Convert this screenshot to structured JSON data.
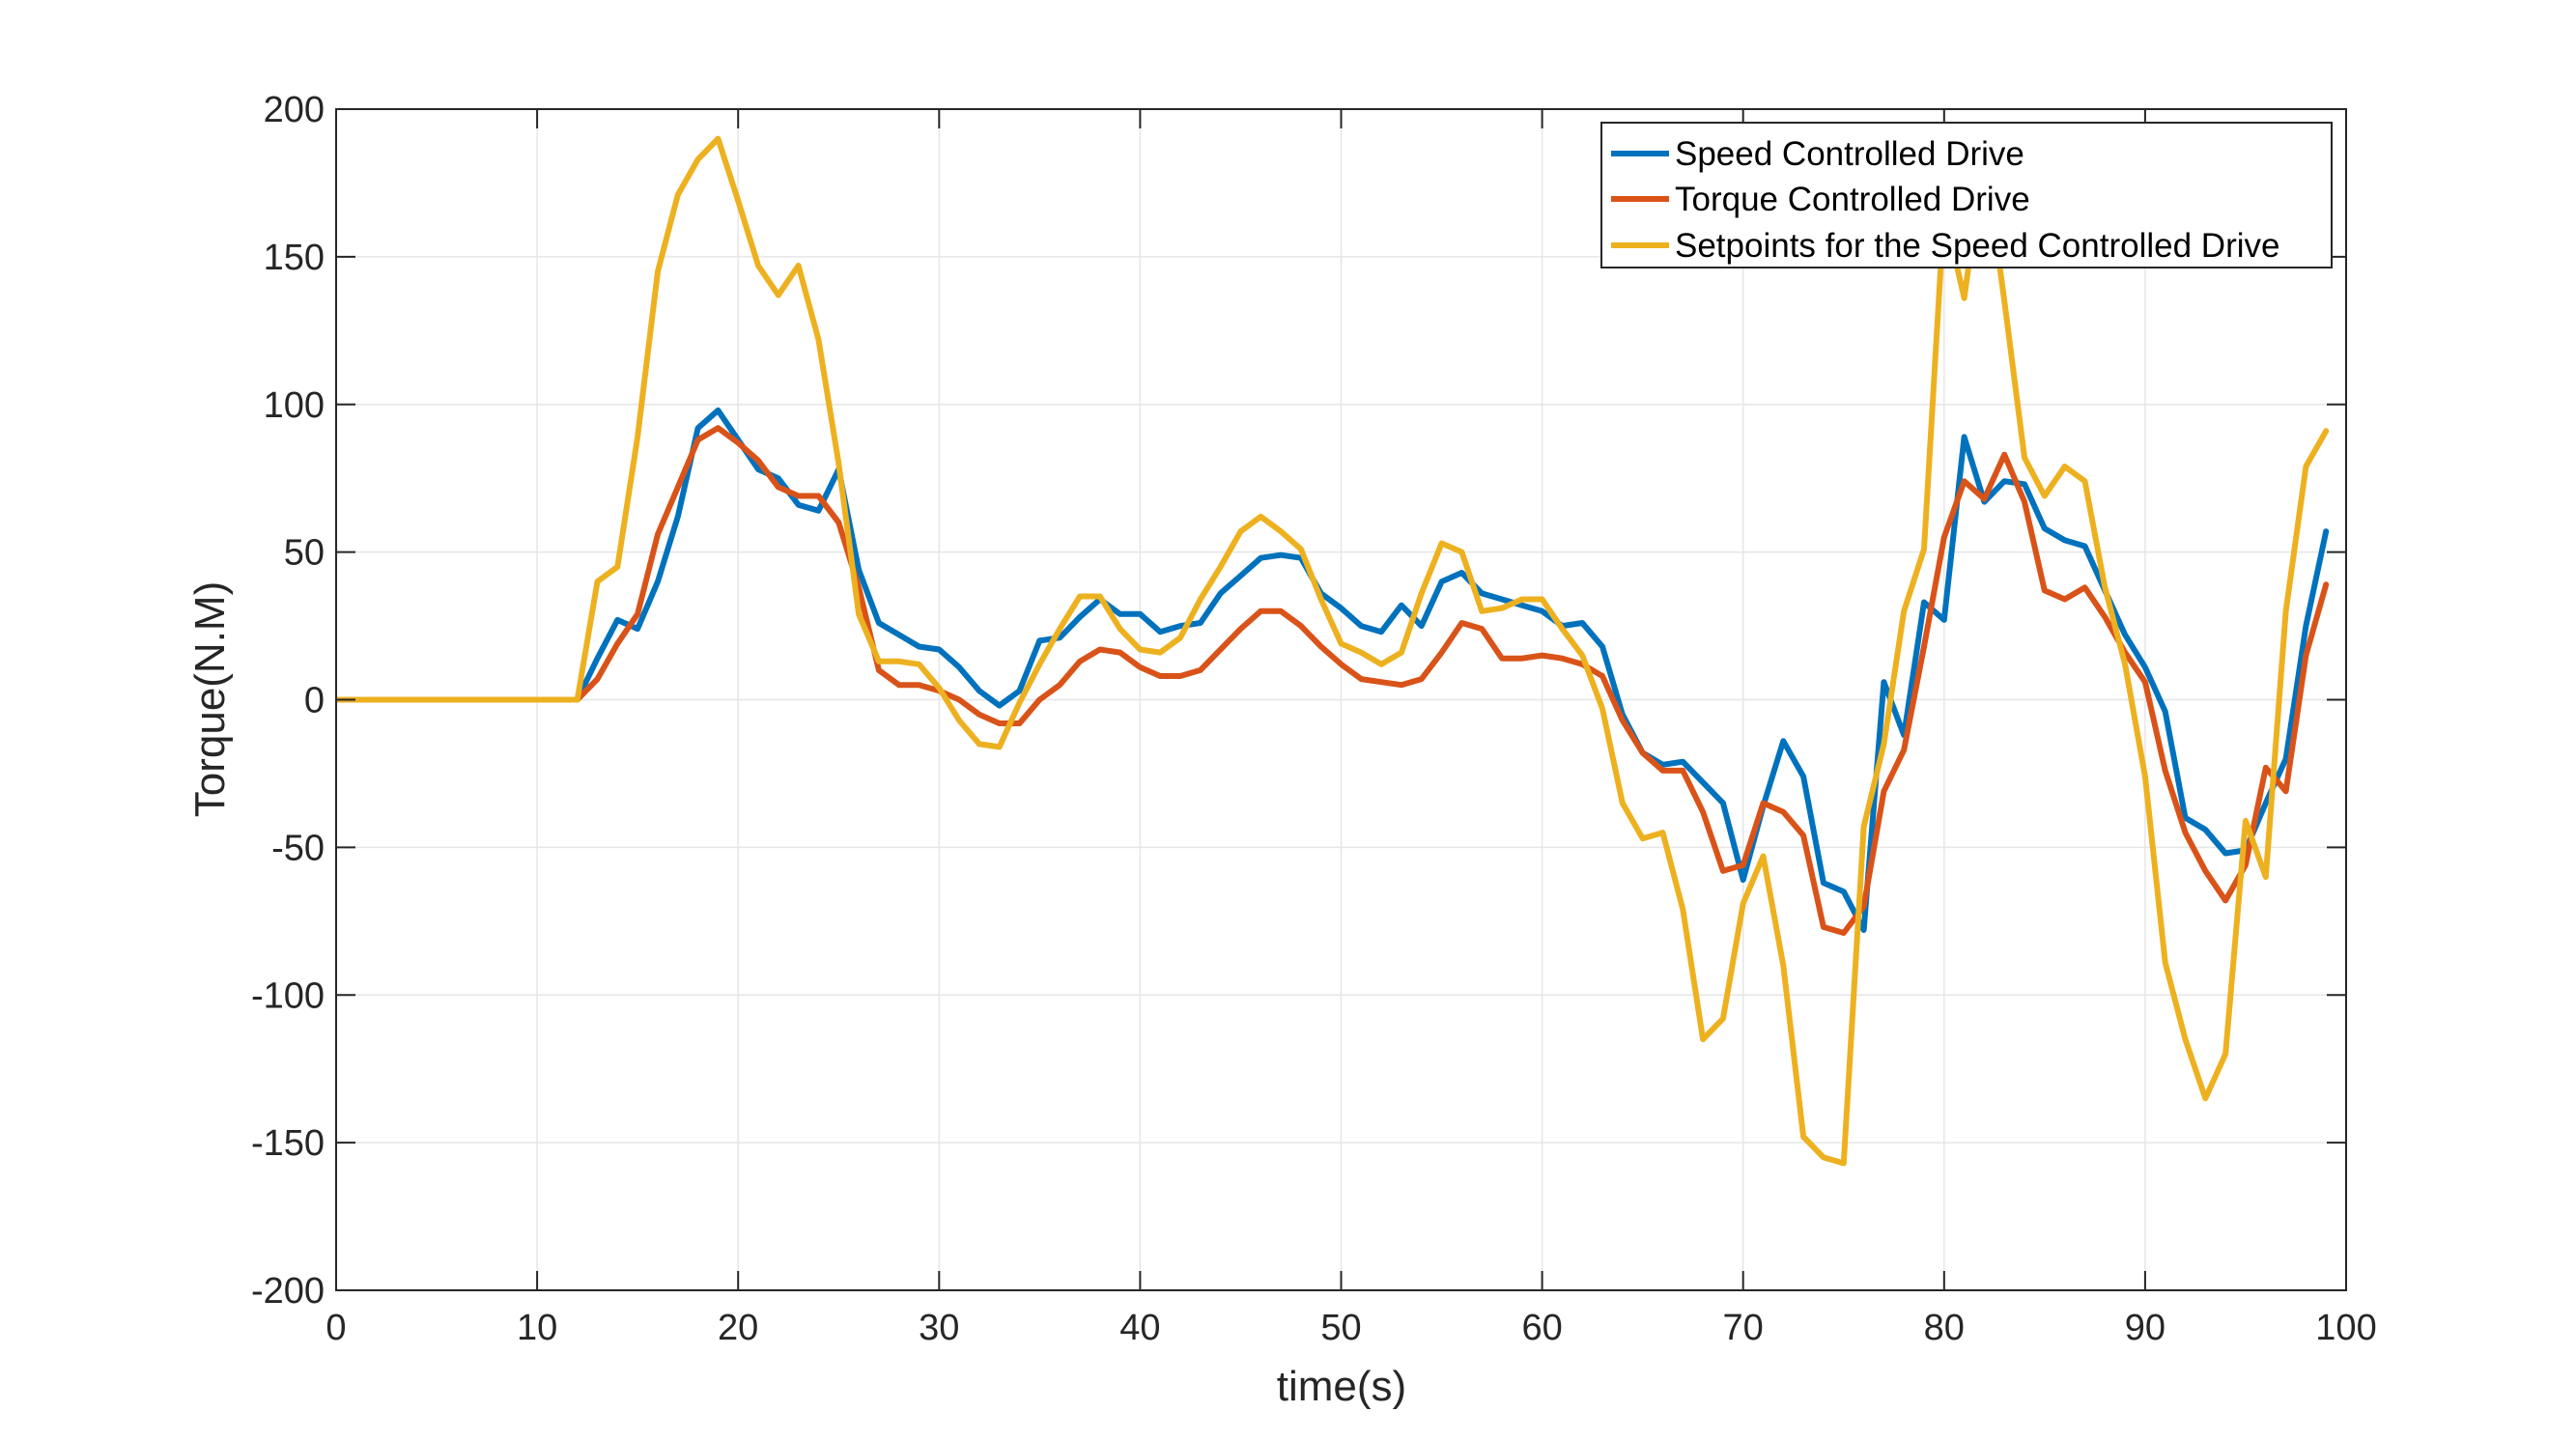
{
  "chart_data": {
    "type": "line",
    "xlabel": "time(s)",
    "ylabel": "Torque(N.M)",
    "xlim": [
      0,
      100
    ],
    "ylim": [
      -200,
      200
    ],
    "xticks": [
      0,
      10,
      20,
      30,
      40,
      50,
      60,
      70,
      80,
      90,
      100
    ],
    "yticks": [
      200,
      150,
      100,
      50,
      0,
      -50,
      -100,
      -150,
      -200
    ],
    "grid": true,
    "legend_position": "top-right",
    "x": [
      0,
      1,
      2,
      3,
      4,
      5,
      6,
      7,
      8,
      9,
      10,
      11,
      12,
      13,
      14,
      15,
      16,
      17,
      18,
      19,
      20,
      21,
      22,
      23,
      24,
      25,
      26,
      27,
      28,
      29,
      30,
      31,
      32,
      33,
      34,
      35,
      36,
      37,
      38,
      39,
      40,
      41,
      42,
      43,
      44,
      45,
      46,
      47,
      48,
      49,
      50,
      51,
      52,
      53,
      54,
      55,
      56,
      57,
      58,
      59,
      60,
      61,
      62,
      63,
      64,
      65,
      66,
      67,
      68,
      69,
      70,
      71,
      72,
      73,
      74,
      75,
      76,
      77,
      78,
      79,
      80,
      81,
      82,
      83,
      84,
      85,
      86,
      87,
      88,
      89,
      90,
      91,
      92,
      93,
      94,
      95,
      96,
      97,
      98,
      99
    ],
    "series": [
      {
        "name": "Speed Controlled Drive",
        "color": "#0072BD",
        "values": [
          0,
          0,
          0,
          0,
          0,
          0,
          0,
          0,
          0,
          0,
          0,
          0,
          0,
          14,
          27,
          24,
          40,
          62,
          92,
          98,
          88,
          78,
          75,
          66,
          64,
          78,
          44,
          26,
          22,
          18,
          17,
          11,
          3,
          -2,
          3,
          20,
          21,
          28,
          34,
          29,
          29,
          23,
          25,
          26,
          36,
          42,
          48,
          49,
          48,
          36,
          31,
          25,
          23,
          32,
          25,
          40,
          43,
          36,
          34,
          32,
          30,
          25,
          26,
          18,
          -5,
          -18,
          -22,
          -21,
          -28,
          -35,
          -61,
          -36,
          -14,
          -26,
          -62,
          -65,
          -78,
          6,
          -12,
          33,
          27,
          89,
          67,
          74,
          73,
          58,
          54,
          52,
          37,
          22,
          11,
          -4,
          -40,
          -44,
          -52,
          -51,
          -35,
          -20,
          25,
          57
        ]
      },
      {
        "name": "Torque Controlled Drive",
        "color": "#D95319",
        "values": [
          0,
          0,
          0,
          0,
          0,
          0,
          0,
          0,
          0,
          0,
          0,
          0,
          0,
          7,
          19,
          29,
          56,
          72,
          88,
          92,
          87,
          81,
          72,
          69,
          69,
          60,
          38,
          10,
          5,
          5,
          3,
          0,
          -5,
          -8,
          -8,
          0,
          5,
          13,
          17,
          16,
          11,
          8,
          8,
          10,
          17,
          24,
          30,
          30,
          25,
          18,
          12,
          7,
          6,
          5,
          7,
          16,
          26,
          24,
          14,
          14,
          15,
          14,
          12,
          8,
          -7,
          -18,
          -24,
          -24,
          -38,
          -58,
          -56,
          -35,
          -38,
          -46,
          -77,
          -79,
          -70,
          -31,
          -17,
          18,
          55,
          74,
          68,
          83,
          67,
          37,
          34,
          38,
          28,
          16,
          6,
          -24,
          -45,
          -58,
          -68,
          -56,
          -23,
          -31,
          15,
          39
        ]
      },
      {
        "name": "Setpoints for the Speed Controlled Drive",
        "color": "#EDB120",
        "values": [
          0,
          0,
          0,
          0,
          0,
          0,
          0,
          0,
          0,
          0,
          0,
          0,
          0,
          40,
          45,
          89,
          145,
          171,
          183,
          190,
          169,
          147,
          137,
          147,
          122,
          80,
          29,
          13,
          13,
          12,
          4,
          -7,
          -15,
          -16,
          -1,
          12,
          24,
          35,
          35,
          24,
          17,
          16,
          21,
          34,
          45,
          57,
          62,
          57,
          51,
          34,
          19,
          16,
          12,
          16,
          36,
          53,
          50,
          30,
          31,
          34,
          34,
          24,
          15,
          -3,
          -35,
          -47,
          -45,
          -71,
          -115,
          -108,
          -69,
          -53,
          -90,
          -148,
          -155,
          -157,
          -43,
          -15,
          30,
          51,
          166,
          136,
          185,
          135,
          82,
          69,
          79,
          74,
          38,
          12,
          -26,
          -89,
          -115,
          -135,
          -120,
          -41,
          -60,
          30,
          79,
          91
        ]
      }
    ]
  }
}
